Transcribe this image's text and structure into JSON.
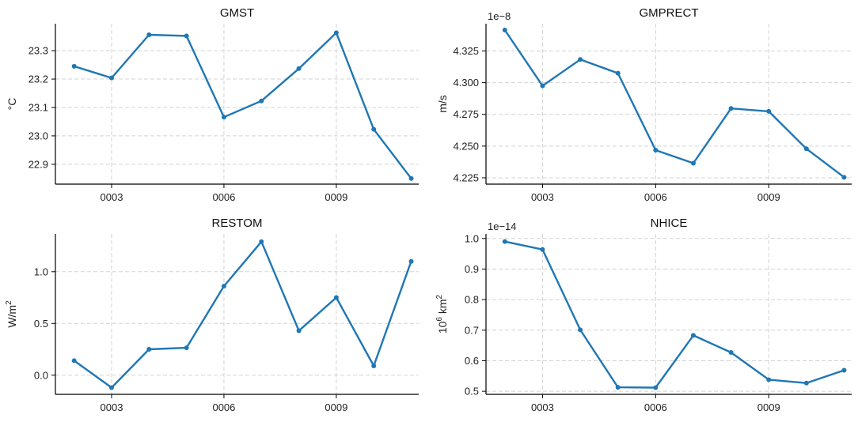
{
  "colors": {
    "series": "#1f77b4"
  },
  "chart_data": [
    {
      "type": "line",
      "title": "GMST",
      "ylabel_parts": [
        "°C"
      ],
      "offset_text": "",
      "x": [
        2,
        3,
        4,
        5,
        6,
        7,
        8,
        9,
        10,
        11
      ],
      "values": [
        23.245,
        23.204,
        23.356,
        23.352,
        23.066,
        23.123,
        23.237,
        23.363,
        23.023,
        22.85
      ],
      "xlim": [
        1.5,
        11.2
      ],
      "ylim": [
        22.83,
        23.395
      ],
      "xticks": [
        3,
        6,
        9
      ],
      "xtick_labels": [
        "0003",
        "0006",
        "0009"
      ],
      "yticks": [
        22.9,
        23.0,
        23.1,
        23.2,
        23.3
      ],
      "ytick_labels": [
        "22.9",
        "23.0",
        "23.1",
        "23.2",
        "23.3"
      ],
      "grid": true
    },
    {
      "type": "line",
      "title": "GMPRECT",
      "ylabel_parts": [
        "m/s"
      ],
      "offset_text": "1e−8",
      "x": [
        2,
        3,
        4,
        5,
        6,
        7,
        8,
        9,
        10,
        11
      ],
      "values": [
        4.3415,
        4.2975,
        4.3183,
        4.3075,
        4.2468,
        4.2365,
        4.2797,
        4.2774,
        4.2479,
        4.2254
      ],
      "xlim": [
        1.5,
        11.2
      ],
      "ylim": [
        4.22,
        4.3465
      ],
      "xticks": [
        3,
        6,
        9
      ],
      "xtick_labels": [
        "0003",
        "0006",
        "0009"
      ],
      "yticks": [
        4.225,
        4.25,
        4.275,
        4.3,
        4.325
      ],
      "ytick_labels": [
        "4.225",
        "4.250",
        "4.275",
        "4.300",
        "4.325"
      ],
      "grid": true
    },
    {
      "type": "line",
      "title": "RESTOM",
      "ylabel_parts": [
        "W/m",
        "2"
      ],
      "offset_text": "",
      "x": [
        2,
        3,
        4,
        5,
        6,
        7,
        8,
        9,
        10,
        11
      ],
      "values": [
        0.14,
        -0.12,
        0.25,
        0.265,
        0.86,
        1.29,
        0.43,
        0.75,
        0.09,
        1.1
      ],
      "xlim": [
        1.5,
        11.2
      ],
      "ylim": [
        -0.185,
        1.365
      ],
      "xticks": [
        3,
        6,
        9
      ],
      "xtick_labels": [
        "0003",
        "0006",
        "0009"
      ],
      "yticks": [
        0.0,
        0.5,
        1.0
      ],
      "ytick_labels": [
        "0.0",
        "0.5",
        "1.0"
      ],
      "grid": true
    },
    {
      "type": "line",
      "title": "NHICE",
      "ylabel_parts": [
        "10",
        "6",
        " km",
        "2"
      ],
      "offset_text": "1e−14",
      "x": [
        2,
        3,
        4,
        5,
        6,
        7,
        8,
        9,
        10,
        11
      ],
      "values": [
        0.99,
        0.964,
        0.701,
        0.513,
        0.512,
        0.683,
        0.627,
        0.538,
        0.527,
        0.569
      ],
      "xlim": [
        1.5,
        11.2
      ],
      "ylim": [
        0.49,
        1.015
      ],
      "xticks": [
        3,
        6,
        9
      ],
      "xtick_labels": [
        "0003",
        "0006",
        "0009"
      ],
      "yticks": [
        0.5,
        0.6,
        0.7,
        0.8,
        0.9,
        1.0
      ],
      "ytick_labels": [
        "0.5",
        "0.6",
        "0.7",
        "0.8",
        "0.9",
        "1.0"
      ],
      "grid": true
    }
  ]
}
